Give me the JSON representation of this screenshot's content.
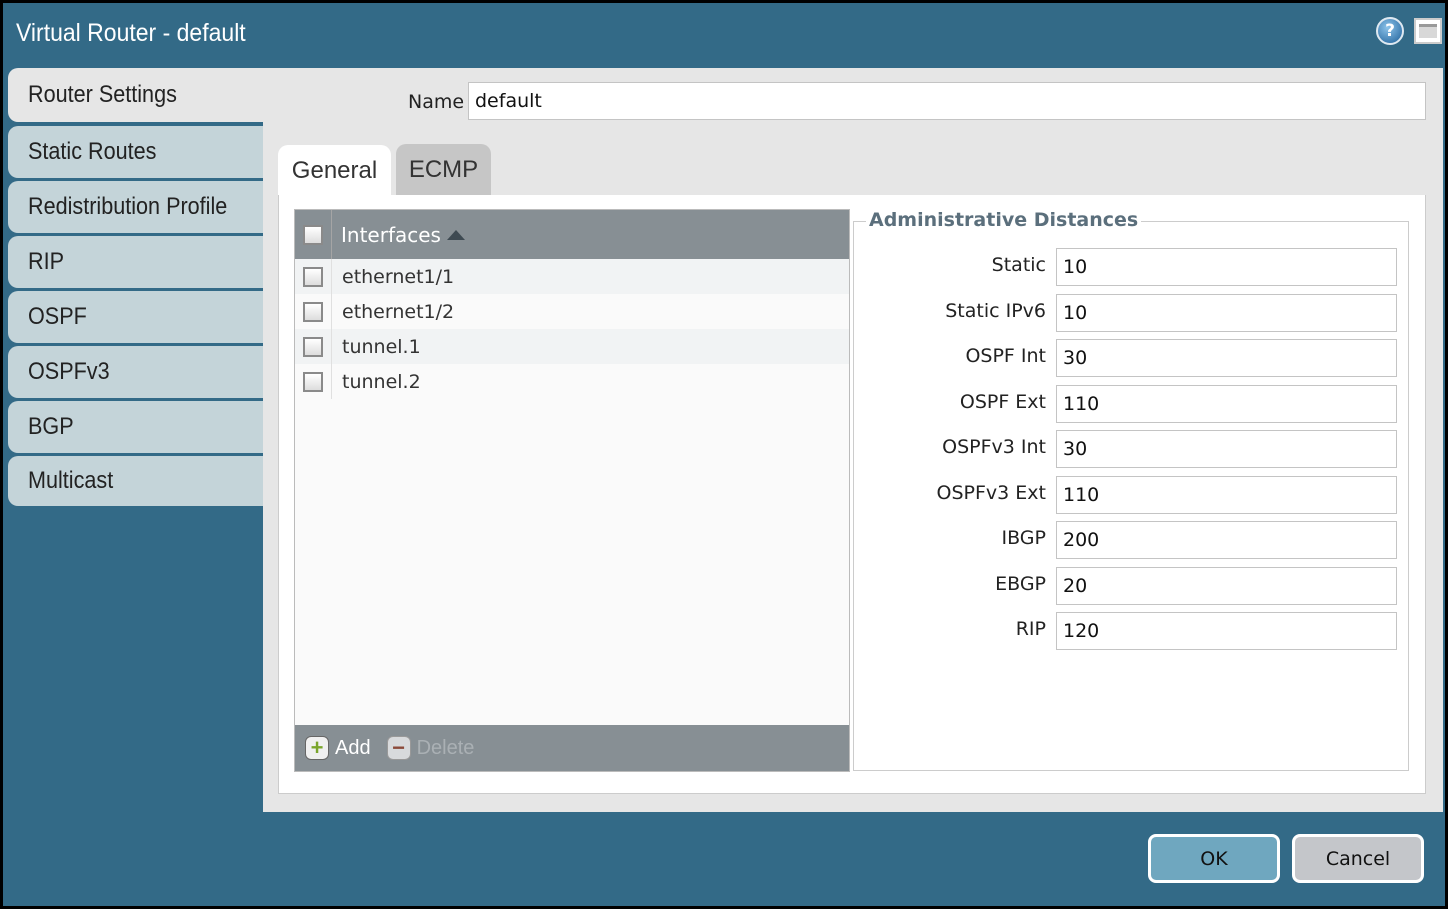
{
  "window": {
    "title": "Virtual Router - default",
    "help_icon": "help-icon",
    "maximize_icon": "maximize-icon"
  },
  "sidebar": {
    "items": [
      {
        "label": "Router Settings",
        "active": true
      },
      {
        "label": "Static Routes"
      },
      {
        "label": "Redistribution Profile"
      },
      {
        "label": "RIP"
      },
      {
        "label": "OSPF"
      },
      {
        "label": "OSPFv3"
      },
      {
        "label": "BGP"
      },
      {
        "label": "Multicast"
      }
    ]
  },
  "name": {
    "label": "Name",
    "value": "default"
  },
  "tabs": [
    {
      "label": "General",
      "active": true
    },
    {
      "label": "ECMP"
    }
  ],
  "interfaces": {
    "header": "Interfaces",
    "sort": "ascending",
    "rows": [
      "ethernet1/1",
      "ethernet1/2",
      "tunnel.1",
      "tunnel.2"
    ],
    "add_label": "Add",
    "delete_label": "Delete"
  },
  "admin": {
    "legend": "Administrative Distances",
    "fields": [
      {
        "label": "Static",
        "value": "10"
      },
      {
        "label": "Static IPv6",
        "value": "10"
      },
      {
        "label": "OSPF Int",
        "value": "30"
      },
      {
        "label": "OSPF Ext",
        "value": "110"
      },
      {
        "label": "OSPFv3 Int",
        "value": "30"
      },
      {
        "label": "OSPFv3 Ext",
        "value": "110"
      },
      {
        "label": "IBGP",
        "value": "200"
      },
      {
        "label": "EBGP",
        "value": "20"
      },
      {
        "label": "RIP",
        "value": "120"
      }
    ]
  },
  "buttons": {
    "ok": "OK",
    "cancel": "Cancel"
  },
  "colors": {
    "window": "#336a87",
    "ok": "#6fa7bf",
    "cancel": "#c4c6ca",
    "grid_header": "#878f94"
  }
}
